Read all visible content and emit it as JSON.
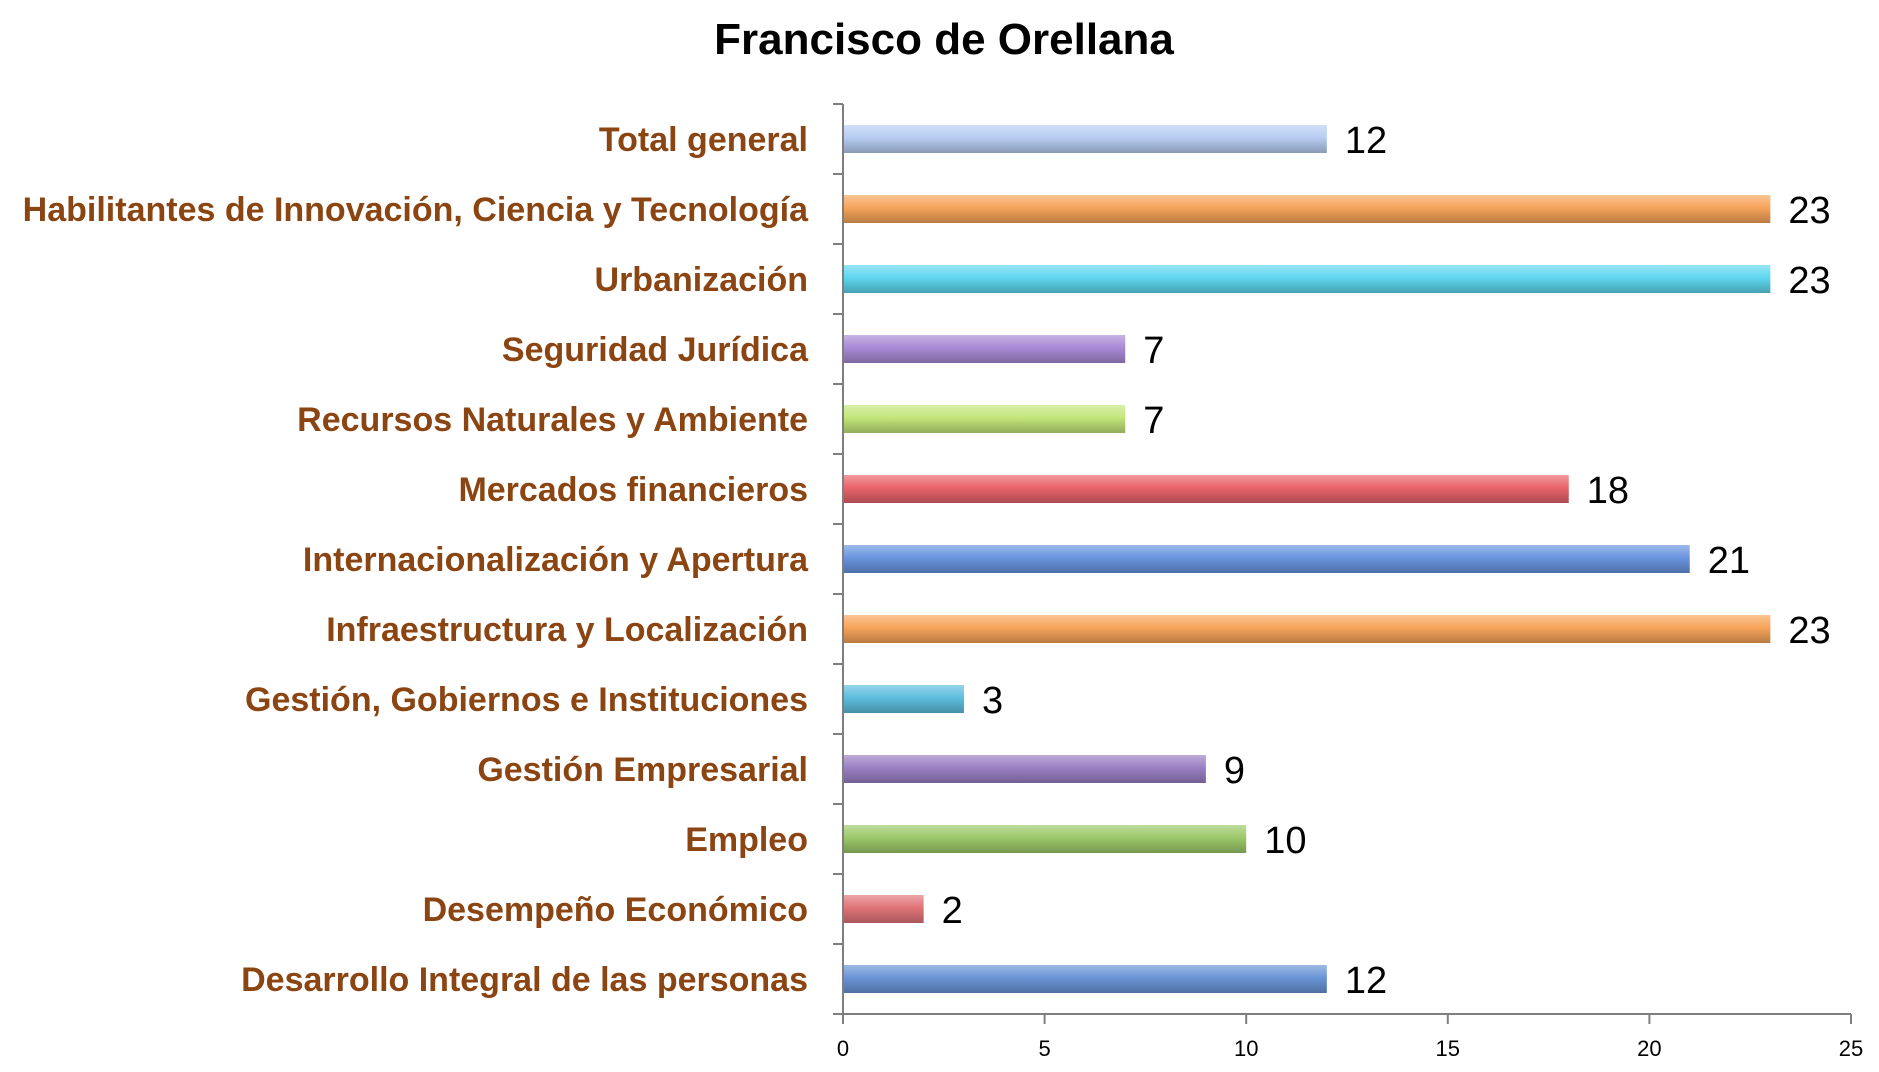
{
  "chart_data": {
    "type": "bar",
    "orientation": "horizontal",
    "title": "Francisco de Orellana",
    "xlabel": "",
    "ylabel": "",
    "xlim": [
      0,
      25
    ],
    "ticks": [
      "0",
      "5",
      "10",
      "15",
      "20",
      "25"
    ],
    "tick_values": [
      0,
      5,
      10,
      15,
      20,
      25
    ],
    "grid": false,
    "legend": "none",
    "categories": [
      "Total general",
      "Habilitantes de Innovación, Ciencia y Tecnología",
      "Urbanización",
      "Seguridad Jurídica",
      "Recursos Naturales y Ambiente",
      "Mercados financieros",
      "Internacionalización y Apertura",
      "Infraestructura y Localización",
      "Gestión, Gobiernos e Instituciones",
      "Gestión Empresarial",
      "Empleo",
      "Desempeño Económico",
      "Desarrollo Integral de las personas"
    ],
    "values": [
      12,
      23,
      23,
      7,
      7,
      18,
      21,
      23,
      3,
      9,
      10,
      2,
      12
    ],
    "value_labels": [
      "12",
      "23",
      "23",
      "7",
      "7",
      "18",
      "21",
      "23",
      "3",
      "9",
      "10",
      "2",
      "12"
    ],
    "colors": [
      "#b7cdf2",
      "#f7a45a",
      "#5fd7ef",
      "#a98ad6",
      "#c3e67a",
      "#e8646a",
      "#6a95e0",
      "#f7a45a",
      "#5dbfdd",
      "#9a80c4",
      "#9cc96a",
      "#e07478",
      "#6a95d6"
    ]
  }
}
